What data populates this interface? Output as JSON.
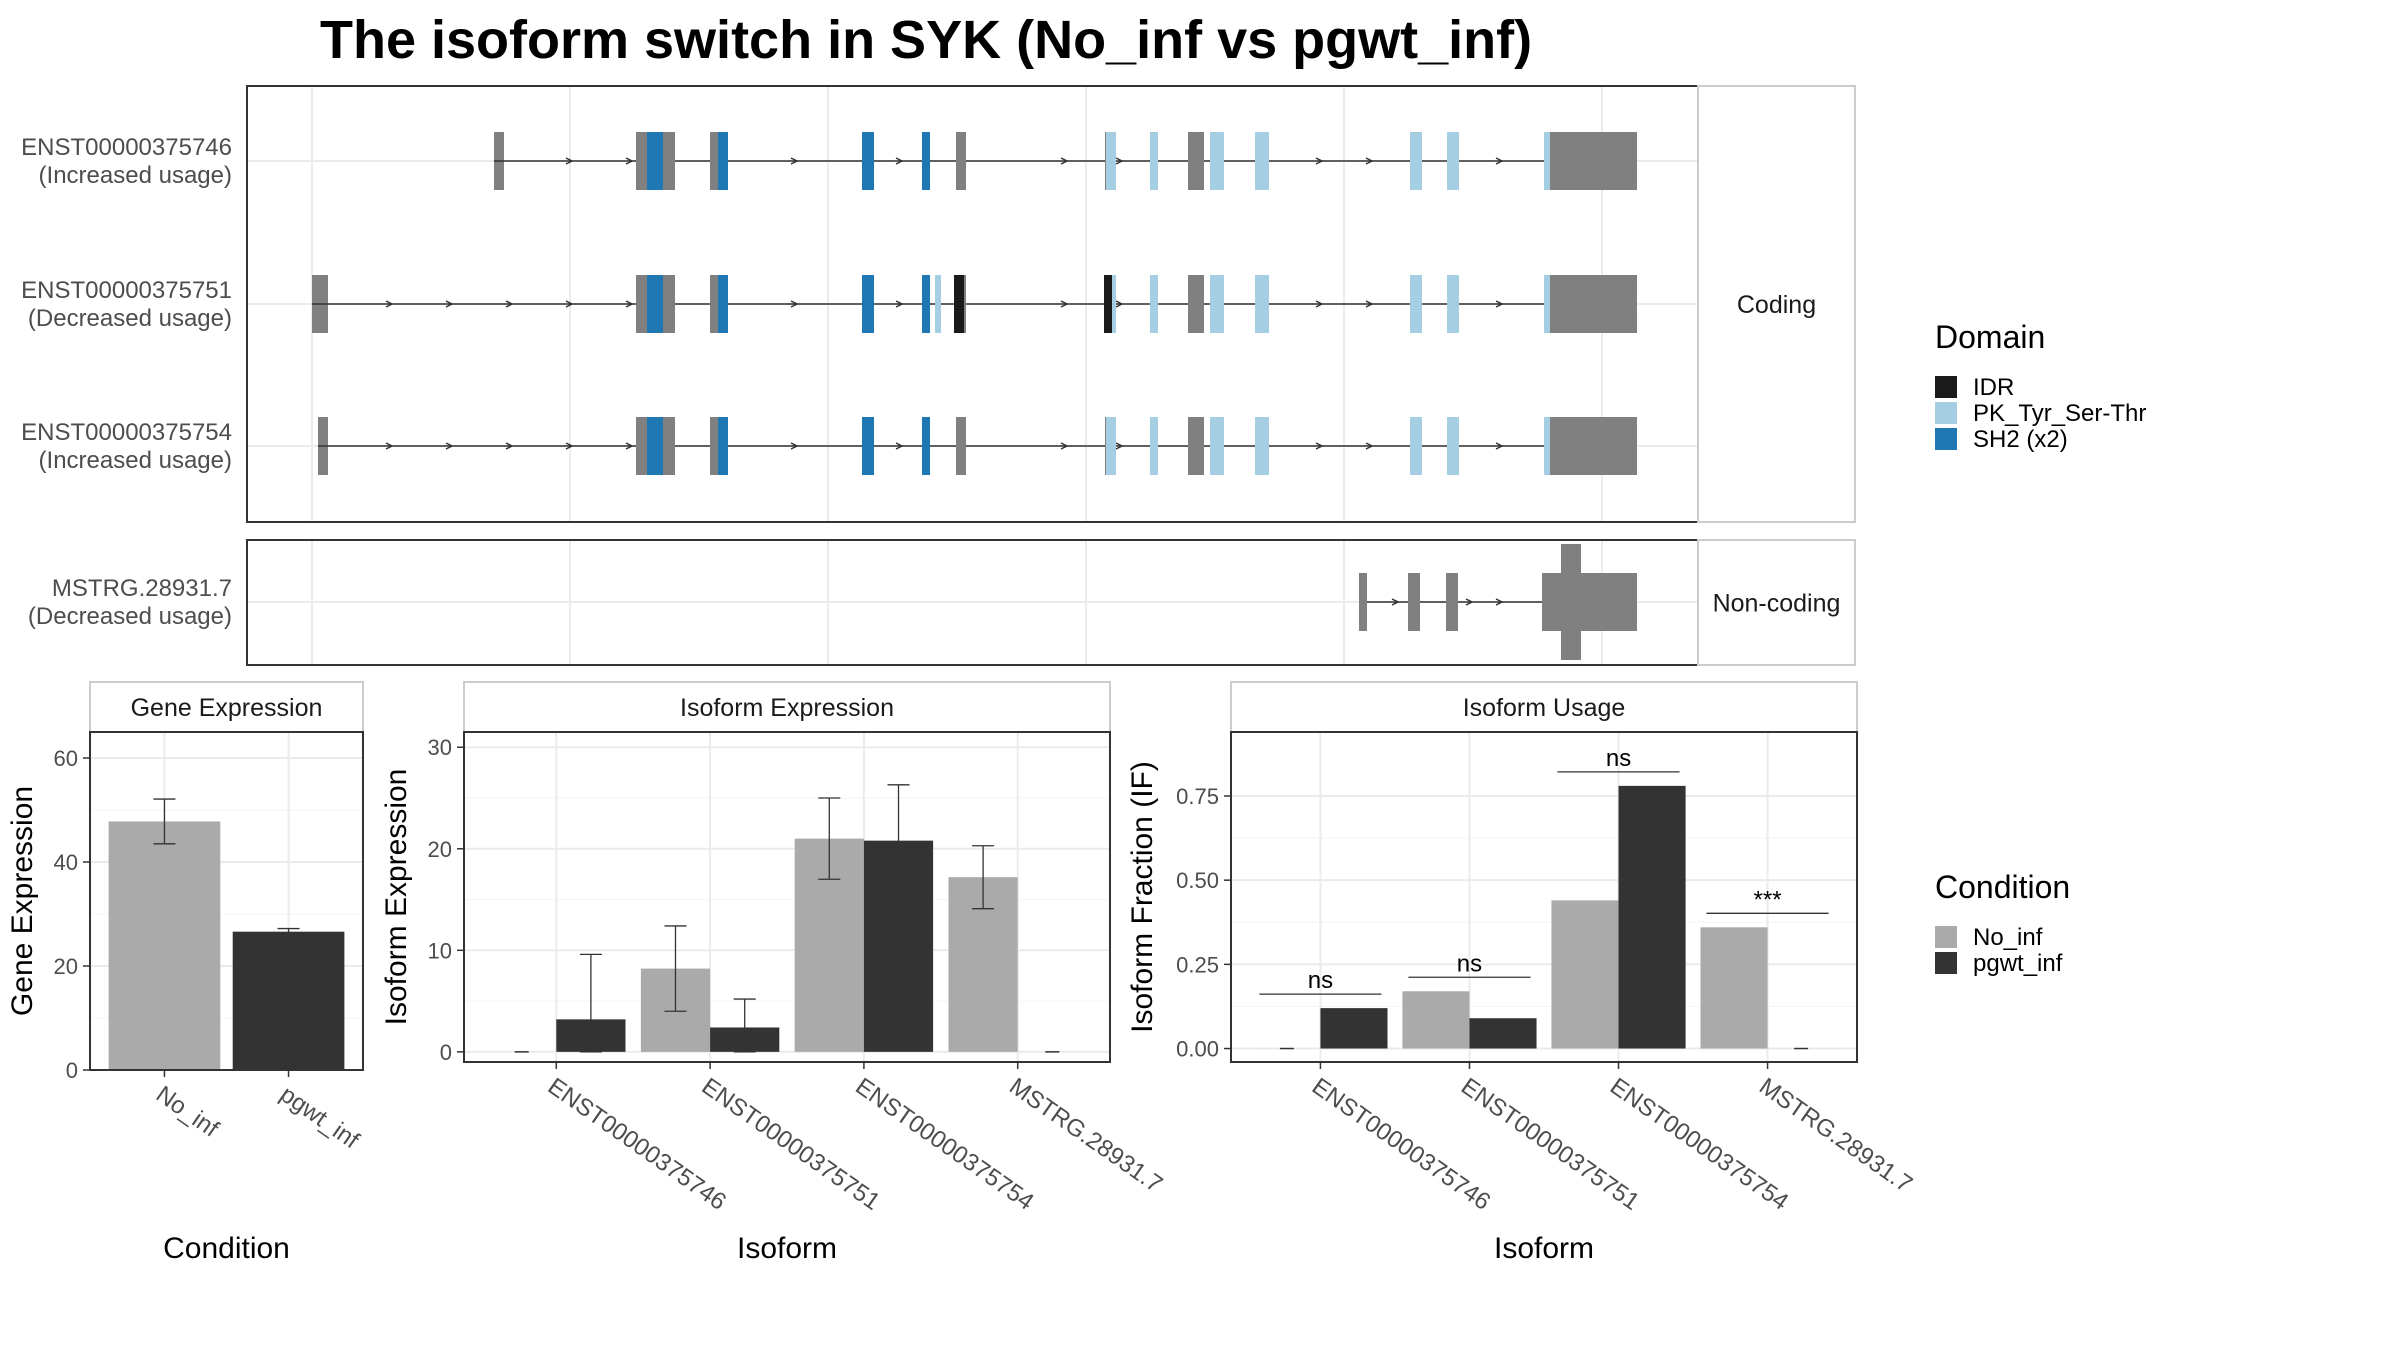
{
  "title": "The isoform switch in SYK (No_inf vs pgwt_inf)",
  "colors": {
    "no_inf": "#aaaaaa",
    "pgwt_inf": "#333333",
    "exon": "#808080",
    "IDR": "#1a1a1a",
    "PK_Tyr_Ser-Thr": "#a6cee3",
    "SH2": "#1f78b4",
    "grid": "#ebebeb",
    "strip": "#ffffff",
    "frame": "#333333"
  },
  "structure": {
    "panels": [
      {
        "strip": "Coding",
        "isoforms": [
          {
            "id": "ENST00000375746",
            "usage": "(Increased usage)",
            "first_exon": "short",
            "idr": false
          },
          {
            "id": "ENST00000375751",
            "usage": "(Decreased usage)",
            "first_exon": "far",
            "idr": true
          },
          {
            "id": "ENST00000375754",
            "usage": "(Increased usage)",
            "first_exon": "far_thin",
            "idr": false
          }
        ]
      },
      {
        "strip": "Non-coding",
        "isoforms": [
          {
            "id": "MSTRG.28931.7",
            "usage": "(Decreased usage)"
          }
        ]
      }
    ]
  },
  "legends": {
    "domain": {
      "title": "Domain",
      "items": [
        {
          "label": "IDR",
          "color": "#1a1a1a"
        },
        {
          "label": "PK_Tyr_Ser-Thr",
          "color": "#a6cee3"
        },
        {
          "label": "SH2 (x2)",
          "color": "#1f78b4"
        }
      ]
    },
    "condition": {
      "title": "Condition",
      "items": [
        {
          "label": "No_inf",
          "color": "#aaaaaa"
        },
        {
          "label": "pgwt_inf",
          "color": "#333333"
        }
      ]
    }
  },
  "chart_data": [
    {
      "type": "bar",
      "strip": "Gene Expression",
      "xlabel": "Condition",
      "ylabel": "Gene Expression",
      "ylim": [
        0,
        65
      ],
      "yticks": [
        0,
        20,
        40,
        60
      ],
      "categories": [
        "No_inf",
        "pgwt_inf"
      ],
      "values": [
        47.8,
        26.6
      ],
      "errors": [
        [
          43.5,
          52.1
        ],
        [
          26.0,
          27.2
        ]
      ],
      "grid": true
    },
    {
      "type": "bar",
      "strip": "Isoform Expression",
      "xlabel": "Isoform",
      "ylabel": "Isoform Expression",
      "ylim": [
        -1,
        31.5
      ],
      "yticks": [
        0,
        10,
        20,
        30
      ],
      "categories": [
        "ENST00000375746",
        "ENST00000375751",
        "ENST00000375754",
        "MSTRG.28931.7"
      ],
      "series": [
        {
          "name": "No_inf",
          "values": [
            0,
            8.2,
            21.0,
            17.2
          ],
          "errors": [
            [
              0,
              0
            ],
            [
              4.0,
              12.4
            ],
            [
              17.0,
              25.0
            ],
            [
              14.1,
              20.3
            ]
          ]
        },
        {
          "name": "pgwt_inf",
          "values": [
            3.2,
            2.4,
            20.8,
            0
          ],
          "errors": [
            [
              0,
              9.6
            ],
            [
              0,
              5.2
            ],
            [
              15.3,
              26.3
            ],
            [
              0,
              0
            ]
          ]
        }
      ],
      "grid": true
    },
    {
      "type": "bar",
      "strip": "Isoform Usage",
      "xlabel": "Isoform",
      "ylabel": "Isoform Fraction (IF)",
      "ylim": [
        -0.04,
        0.94
      ],
      "yticks": [
        0,
        0.25,
        0.5,
        0.75
      ],
      "ytick_labels": [
        "0.00",
        "0.25",
        "0.50",
        "0.75"
      ],
      "categories": [
        "ENST00000375746",
        "ENST00000375751",
        "ENST00000375754",
        "MSTRG.28931.7"
      ],
      "series": [
        {
          "name": "No_inf",
          "values": [
            0,
            0.17,
            0.44,
            0.36
          ]
        },
        {
          "name": "pgwt_inf",
          "values": [
            0.12,
            0.09,
            0.78,
            0
          ]
        }
      ],
      "significance": [
        "ns",
        "ns",
        "ns",
        "***"
      ],
      "grid": true
    }
  ]
}
